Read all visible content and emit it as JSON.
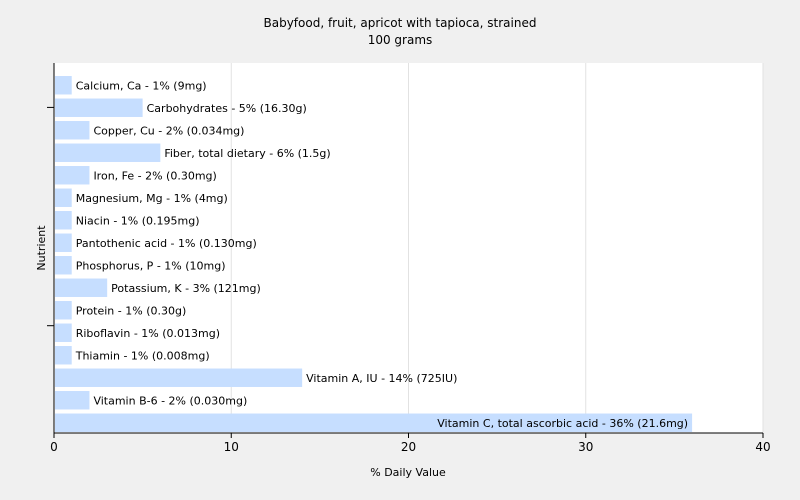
{
  "chart_data": {
    "type": "bar",
    "orientation": "horizontal",
    "title": "Babyfood, fruit, apricot with tapioca, strained",
    "subtitle": "100 grams",
    "xlabel": "% Daily Value",
    "ylabel": "Nutrient",
    "xlim": [
      0,
      40
    ],
    "xticks": [
      0,
      10,
      20,
      30,
      40
    ],
    "grid": true,
    "bar_color": "#c6deff",
    "categories": [
      "Calcium, Ca - 1% (9mg)",
      "Carbohydrates - 5% (16.30g)",
      "Copper, Cu - 2% (0.034mg)",
      "Fiber, total dietary - 6% (1.5g)",
      "Iron, Fe - 2% (0.30mg)",
      "Magnesium, Mg - 1% (4mg)",
      "Niacin - 1% (0.195mg)",
      "Pantothenic acid - 1% (0.130mg)",
      "Phosphorus, P - 1% (10mg)",
      "Potassium, K - 3% (121mg)",
      "Protein - 1% (0.30g)",
      "Riboflavin - 1% (0.013mg)",
      "Thiamin - 1% (0.008mg)",
      "Vitamin A, IU - 14% (725IU)",
      "Vitamin B-6 - 2% (0.030mg)",
      "Vitamin C, total ascorbic acid - 36% (21.6mg)"
    ],
    "values": [
      1,
      5,
      2,
      6,
      2,
      1,
      1,
      1,
      1,
      3,
      1,
      1,
      1,
      14,
      2,
      36
    ]
  }
}
